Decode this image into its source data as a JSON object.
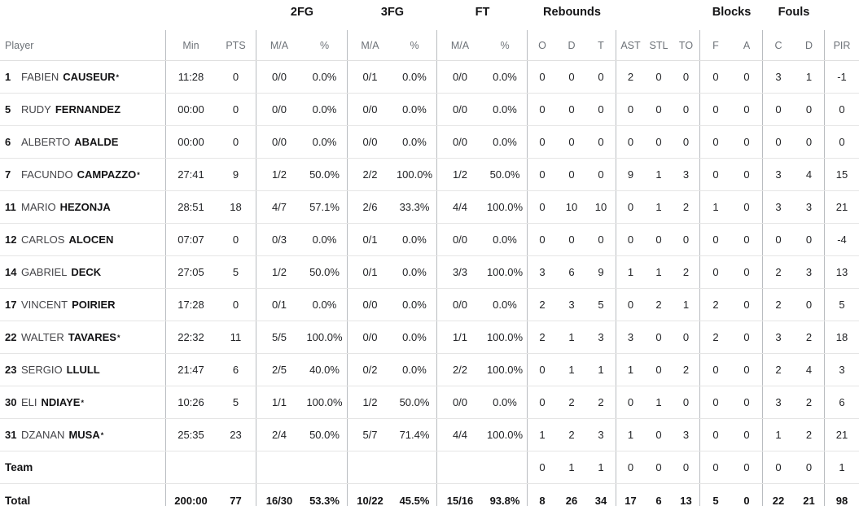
{
  "table": {
    "group_headers": {
      "fg2": "2FG",
      "fg3": "3FG",
      "ft": "FT",
      "rebounds": "Rebounds",
      "blocks": "Blocks",
      "fouls": "Fouls"
    },
    "columns": {
      "player": "Player",
      "min": "Min",
      "pts": "PTS",
      "ma": "M/A",
      "pct": "%",
      "o": "O",
      "d": "D",
      "t": "T",
      "ast": "AST",
      "stl": "STL",
      "to": "TO",
      "f": "F",
      "a": "A",
      "c": "C",
      "pir": "PIR"
    }
  },
  "rows": [
    {
      "kind": "player-row",
      "num": "1",
      "first": "FABIEN",
      "last": "CAUSEUR",
      "star": "*",
      "min": "11:28",
      "pts": "0",
      "fg2_ma": "0/0",
      "fg2_pct": "0.0%",
      "fg3_ma": "0/1",
      "fg3_pct": "0.0%",
      "ft_ma": "0/0",
      "ft_pct": "0.0%",
      "reb_o": "0",
      "reb_d": "0",
      "reb_t": "0",
      "ast": "2",
      "stl": "0",
      "to": "0",
      "blk_f": "0",
      "blk_a": "0",
      "foul_c": "3",
      "foul_d": "1",
      "pir": "-1"
    },
    {
      "kind": "player-row",
      "num": "5",
      "first": "RUDY",
      "last": "FERNANDEZ",
      "star": "",
      "min": "00:00",
      "pts": "0",
      "fg2_ma": "0/0",
      "fg2_pct": "0.0%",
      "fg3_ma": "0/0",
      "fg3_pct": "0.0%",
      "ft_ma": "0/0",
      "ft_pct": "0.0%",
      "reb_o": "0",
      "reb_d": "0",
      "reb_t": "0",
      "ast": "0",
      "stl": "0",
      "to": "0",
      "blk_f": "0",
      "blk_a": "0",
      "foul_c": "0",
      "foul_d": "0",
      "pir": "0"
    },
    {
      "kind": "player-row",
      "num": "6",
      "first": "ALBERTO",
      "last": "ABALDE",
      "star": "",
      "min": "00:00",
      "pts": "0",
      "fg2_ma": "0/0",
      "fg2_pct": "0.0%",
      "fg3_ma": "0/0",
      "fg3_pct": "0.0%",
      "ft_ma": "0/0",
      "ft_pct": "0.0%",
      "reb_o": "0",
      "reb_d": "0",
      "reb_t": "0",
      "ast": "0",
      "stl": "0",
      "to": "0",
      "blk_f": "0",
      "blk_a": "0",
      "foul_c": "0",
      "foul_d": "0",
      "pir": "0"
    },
    {
      "kind": "player-row",
      "num": "7",
      "first": "FACUNDO",
      "last": "CAMPAZZO",
      "star": "*",
      "min": "27:41",
      "pts": "9",
      "fg2_ma": "1/2",
      "fg2_pct": "50.0%",
      "fg3_ma": "2/2",
      "fg3_pct": "100.0%",
      "ft_ma": "1/2",
      "ft_pct": "50.0%",
      "reb_o": "0",
      "reb_d": "0",
      "reb_t": "0",
      "ast": "9",
      "stl": "1",
      "to": "3",
      "blk_f": "0",
      "blk_a": "0",
      "foul_c": "3",
      "foul_d": "4",
      "pir": "15"
    },
    {
      "kind": "player-row",
      "num": "11",
      "first": "MARIO",
      "last": "HEZONJA",
      "star": "",
      "min": "28:51",
      "pts": "18",
      "fg2_ma": "4/7",
      "fg2_pct": "57.1%",
      "fg3_ma": "2/6",
      "fg3_pct": "33.3%",
      "ft_ma": "4/4",
      "ft_pct": "100.0%",
      "reb_o": "0",
      "reb_d": "10",
      "reb_t": "10",
      "ast": "0",
      "stl": "1",
      "to": "2",
      "blk_f": "1",
      "blk_a": "0",
      "foul_c": "3",
      "foul_d": "3",
      "pir": "21"
    },
    {
      "kind": "player-row",
      "num": "12",
      "first": "CARLOS",
      "last": "ALOCEN",
      "star": "",
      "min": "07:07",
      "pts": "0",
      "fg2_ma": "0/3",
      "fg2_pct": "0.0%",
      "fg3_ma": "0/1",
      "fg3_pct": "0.0%",
      "ft_ma": "0/0",
      "ft_pct": "0.0%",
      "reb_o": "0",
      "reb_d": "0",
      "reb_t": "0",
      "ast": "0",
      "stl": "0",
      "to": "0",
      "blk_f": "0",
      "blk_a": "0",
      "foul_c": "0",
      "foul_d": "0",
      "pir": "-4"
    },
    {
      "kind": "player-row",
      "num": "14",
      "first": "GABRIEL",
      "last": "DECK",
      "star": "",
      "min": "27:05",
      "pts": "5",
      "fg2_ma": "1/2",
      "fg2_pct": "50.0%",
      "fg3_ma": "0/1",
      "fg3_pct": "0.0%",
      "ft_ma": "3/3",
      "ft_pct": "100.0%",
      "reb_o": "3",
      "reb_d": "6",
      "reb_t": "9",
      "ast": "1",
      "stl": "1",
      "to": "2",
      "blk_f": "0",
      "blk_a": "0",
      "foul_c": "2",
      "foul_d": "3",
      "pir": "13"
    },
    {
      "kind": "player-row",
      "num": "17",
      "first": "VINCENT",
      "last": "POIRIER",
      "star": "",
      "min": "17:28",
      "pts": "0",
      "fg2_ma": "0/1",
      "fg2_pct": "0.0%",
      "fg3_ma": "0/0",
      "fg3_pct": "0.0%",
      "ft_ma": "0/0",
      "ft_pct": "0.0%",
      "reb_o": "2",
      "reb_d": "3",
      "reb_t": "5",
      "ast": "0",
      "stl": "2",
      "to": "1",
      "blk_f": "2",
      "blk_a": "0",
      "foul_c": "2",
      "foul_d": "0",
      "pir": "5"
    },
    {
      "kind": "player-row",
      "num": "22",
      "first": "WALTER",
      "last": "TAVARES",
      "star": "*",
      "min": "22:32",
      "pts": "11",
      "fg2_ma": "5/5",
      "fg2_pct": "100.0%",
      "fg3_ma": "0/0",
      "fg3_pct": "0.0%",
      "ft_ma": "1/1",
      "ft_pct": "100.0%",
      "reb_o": "2",
      "reb_d": "1",
      "reb_t": "3",
      "ast": "3",
      "stl": "0",
      "to": "0",
      "blk_f": "2",
      "blk_a": "0",
      "foul_c": "3",
      "foul_d": "2",
      "pir": "18"
    },
    {
      "kind": "player-row",
      "num": "23",
      "first": "SERGIO",
      "last": "LLULL",
      "star": "",
      "min": "21:47",
      "pts": "6",
      "fg2_ma": "2/5",
      "fg2_pct": "40.0%",
      "fg3_ma": "0/2",
      "fg3_pct": "0.0%",
      "ft_ma": "2/2",
      "ft_pct": "100.0%",
      "reb_o": "0",
      "reb_d": "1",
      "reb_t": "1",
      "ast": "1",
      "stl": "0",
      "to": "2",
      "blk_f": "0",
      "blk_a": "0",
      "foul_c": "2",
      "foul_d": "4",
      "pir": "3"
    },
    {
      "kind": "player-row",
      "num": "30",
      "first": "ELI",
      "last": "NDIAYE",
      "star": "*",
      "min": "10:26",
      "pts": "5",
      "fg2_ma": "1/1",
      "fg2_pct": "100.0%",
      "fg3_ma": "1/2",
      "fg3_pct": "50.0%",
      "ft_ma": "0/0",
      "ft_pct": "0.0%",
      "reb_o": "0",
      "reb_d": "2",
      "reb_t": "2",
      "ast": "0",
      "stl": "1",
      "to": "0",
      "blk_f": "0",
      "blk_a": "0",
      "foul_c": "3",
      "foul_d": "2",
      "pir": "6"
    },
    {
      "kind": "player-row",
      "num": "31",
      "first": "DZANAN",
      "last": "MUSA",
      "star": "*",
      "min": "25:35",
      "pts": "23",
      "fg2_ma": "2/4",
      "fg2_pct": "50.0%",
      "fg3_ma": "5/7",
      "fg3_pct": "71.4%",
      "ft_ma": "4/4",
      "ft_pct": "100.0%",
      "reb_o": "1",
      "reb_d": "2",
      "reb_t": "3",
      "ast": "1",
      "stl": "0",
      "to": "3",
      "blk_f": "0",
      "blk_a": "0",
      "foul_c": "1",
      "foul_d": "2",
      "pir": "21"
    },
    {
      "kind": "team",
      "label": "Team",
      "min": "",
      "pts": "",
      "fg2_ma": "",
      "fg2_pct": "",
      "fg3_ma": "",
      "fg3_pct": "",
      "ft_ma": "",
      "ft_pct": "",
      "reb_o": "0",
      "reb_d": "1",
      "reb_t": "1",
      "ast": "0",
      "stl": "0",
      "to": "0",
      "blk_f": "0",
      "blk_a": "0",
      "foul_c": "0",
      "foul_d": "0",
      "pir": "1"
    },
    {
      "kind": "total",
      "label": "Total",
      "min": "200:00",
      "pts": "77",
      "fg2_ma": "16/30",
      "fg2_pct": "53.3%",
      "fg3_ma": "10/22",
      "fg3_pct": "45.5%",
      "ft_ma": "15/16",
      "ft_pct": "93.8%",
      "reb_o": "8",
      "reb_d": "26",
      "reb_t": "34",
      "ast": "17",
      "stl": "6",
      "to": "13",
      "blk_f": "5",
      "blk_a": "0",
      "foul_c": "22",
      "foul_d": "21",
      "pir": "98"
    }
  ]
}
